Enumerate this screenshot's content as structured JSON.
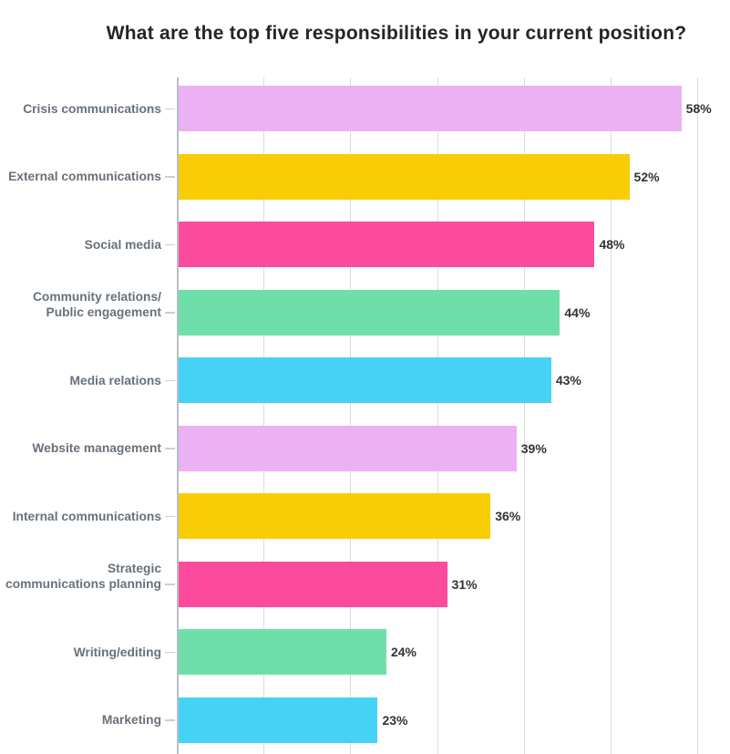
{
  "chart_data": {
    "type": "bar",
    "orientation": "horizontal",
    "title": "What are the top five responsibilities in your current position?",
    "categories": [
      "Crisis communications",
      "External communications",
      "Social media",
      "Community relations/\nPublic engagement",
      "Media relations",
      "Website management",
      "Internal communications",
      "Strategic\ncommunications planning",
      "Writing/editing",
      "Marketing"
    ],
    "values": [
      58,
      52,
      48,
      44,
      43,
      39,
      36,
      31,
      24,
      23
    ],
    "value_labels": [
      "58%",
      "52%",
      "48%",
      "44%",
      "43%",
      "39%",
      "36%",
      "31%",
      "24%",
      "23%"
    ],
    "bar_colors": [
      "#ecb1f3",
      "#f9cd05",
      "#fc4b9c",
      "#6fdfa9",
      "#44d3f4",
      "#ecb1f3",
      "#f9cd05",
      "#fc4b9c",
      "#6fdfa9",
      "#44d3f4"
    ],
    "xlim": [
      0,
      63.5
    ],
    "gridlines_percent": [
      0,
      10,
      20,
      30,
      40,
      50,
      60
    ],
    "grid": true,
    "legend": false,
    "xlabel": "",
    "ylabel": ""
  },
  "style": {
    "grid_color": "#d9dbdd",
    "axis_color": "#b7bfc7",
    "label_color": "#68717a",
    "value_color": "#303438",
    "title_color": "#222529",
    "background": "#ffffff"
  }
}
